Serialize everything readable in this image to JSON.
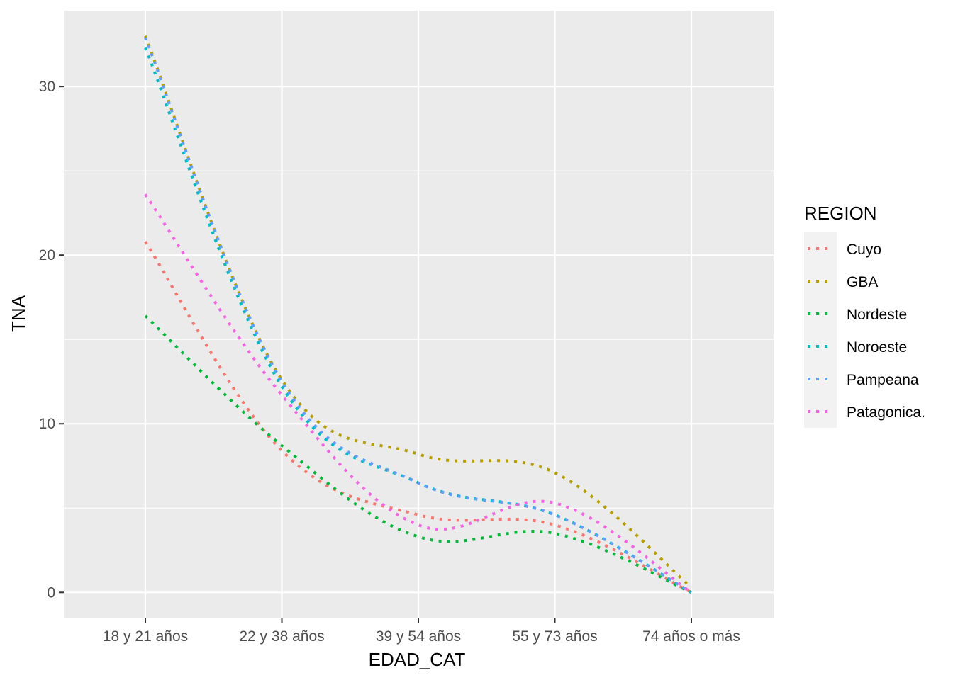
{
  "chart_data": {
    "type": "line",
    "title": "",
    "xlabel": "EDAD_CAT",
    "ylabel": "TNA",
    "categories": [
      "18 y 21 años",
      "22 y 38 años",
      "39 y 54 años",
      "55 y 73 años",
      "74 años o más"
    ],
    "ylim": [
      -1.5,
      34.5
    ],
    "yticks": [
      0,
      10,
      20,
      30
    ],
    "grid": true,
    "line_style": "dotted",
    "legend": {
      "title": "REGION",
      "position": "right"
    },
    "series": [
      {
        "name": "Cuyo",
        "color": "#F8766D",
        "values": [
          20.8,
          8.4,
          4.6,
          4.0,
          0.0
        ]
      },
      {
        "name": "GBA",
        "color": "#B79F00",
        "values": [
          33.0,
          12.6,
          8.2,
          7.1,
          0.3
        ]
      },
      {
        "name": "Nordeste",
        "color": "#00BA38",
        "values": [
          16.4,
          8.7,
          3.3,
          3.5,
          0.0
        ]
      },
      {
        "name": "Noroeste",
        "color": "#00BFC4",
        "values": [
          32.3,
          12.2,
          6.5,
          4.6,
          0.0
        ]
      },
      {
        "name": "Pampeana",
        "color": "#619CFF",
        "values": [
          32.9,
          12.5,
          6.5,
          4.6,
          0.0
        ]
      },
      {
        "name": "Patagonica.",
        "color": "#F564E3",
        "values": [
          23.6,
          11.7,
          4.0,
          5.3,
          0.0
        ]
      }
    ]
  },
  "colors": {
    "panel_background": "#EBEBEB",
    "grid_major": "#FFFFFF",
    "tick_text": "#4D4D4D",
    "legend_key_background": "#F2F2F2"
  }
}
